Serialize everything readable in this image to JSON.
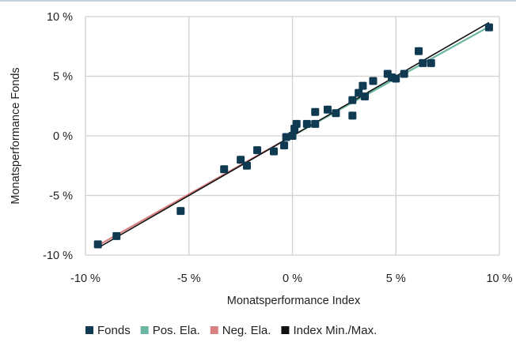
{
  "chart_data": {
    "type": "scatter",
    "xlabel": "Monatsperformance Index",
    "ylabel": "Monatsperformance Fonds",
    "xlim": [
      -10,
      10
    ],
    "ylim": [
      -10,
      10
    ],
    "xticks": [
      -10,
      -5,
      0,
      5,
      10
    ],
    "yticks": [
      -10,
      -5,
      0,
      5,
      10
    ],
    "xtick_labels": [
      "-10 %",
      "-5 %",
      "0 %",
      "5 %",
      "10 %"
    ],
    "ytick_labels": [
      "-10 %",
      "-5 %",
      "0 %",
      "5 %",
      "10 %"
    ],
    "grid": true,
    "legend_position": "bottom",
    "series": [
      {
        "name": "Fonds",
        "kind": "markers",
        "color": "#0f3a52",
        "points": [
          [
            -9.4,
            -9.1
          ],
          [
            -8.5,
            -8.4
          ],
          [
            -5.4,
            -6.3
          ],
          [
            -3.3,
            -2.8
          ],
          [
            -2.5,
            -2.0
          ],
          [
            -2.2,
            -2.5
          ],
          [
            -1.7,
            -1.2
          ],
          [
            -0.9,
            -1.3
          ],
          [
            -0.4,
            -0.8
          ],
          [
            -0.3,
            -0.1
          ],
          [
            0.0,
            0.0
          ],
          [
            0.1,
            0.6
          ],
          [
            0.2,
            1.0
          ],
          [
            0.7,
            1.0
          ],
          [
            1.1,
            1.0
          ],
          [
            1.1,
            2.0
          ],
          [
            1.7,
            2.2
          ],
          [
            2.1,
            1.9
          ],
          [
            2.9,
            1.7
          ],
          [
            2.9,
            3.0
          ],
          [
            3.2,
            3.6
          ],
          [
            3.4,
            4.2
          ],
          [
            3.5,
            3.3
          ],
          [
            3.9,
            4.6
          ],
          [
            4.6,
            5.2
          ],
          [
            4.8,
            4.9
          ],
          [
            5.0,
            4.8
          ],
          [
            5.4,
            5.2
          ],
          [
            6.1,
            7.1
          ],
          [
            6.3,
            6.1
          ],
          [
            6.7,
            6.1
          ],
          [
            9.5,
            9.1
          ]
        ]
      },
      {
        "name": "Pos. Ela.",
        "kind": "line",
        "color": "#6bb5a3",
        "points": [
          [
            0,
            0
          ],
          [
            9.5,
            9.15
          ]
        ]
      },
      {
        "name": "Neg. Ela.",
        "kind": "line",
        "color": "#d98080",
        "points": [
          [
            -9.4,
            -9.2
          ],
          [
            0,
            0
          ]
        ]
      },
      {
        "name": "Index Min./Max.",
        "kind": "line",
        "color": "#111111",
        "points": [
          [
            -9.4,
            -9.4
          ],
          [
            9.5,
            9.5
          ]
        ]
      }
    ]
  }
}
